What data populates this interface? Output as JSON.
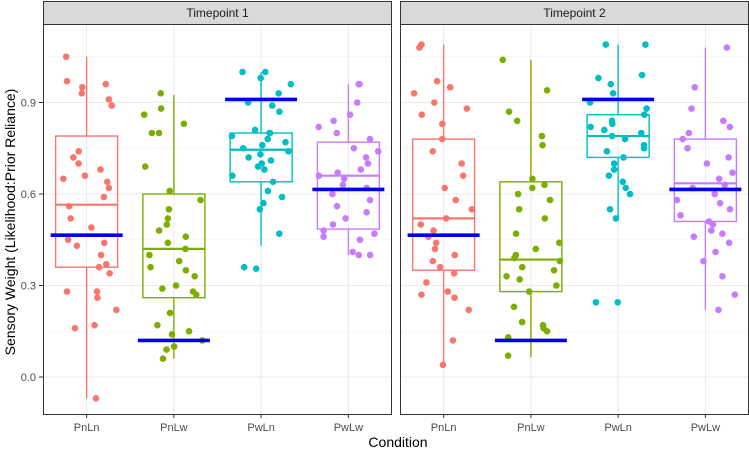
{
  "chart_data": {
    "type": "boxplot",
    "ylabel": "Sensory Weight (Likelihood:Prior Reliance)",
    "xlabel": "Condition",
    "ylim": [
      -0.1,
      1.12
    ],
    "yticks": [
      0.0,
      0.3,
      0.6,
      0.9
    ],
    "ytick_labels": [
      "0.0",
      "0.3",
      "0.6",
      "0.9"
    ],
    "categories": [
      "PnLn",
      "PnLw",
      "PwLn",
      "PwLw"
    ],
    "colors": {
      "PnLn": "#F8766D",
      "PnLw": "#7CAE00",
      "PwLn": "#00BFC4",
      "PwLw": "#C77CFF",
      "reference": "#0000EE"
    },
    "panels": [
      {
        "title": "Timepoint 1",
        "groups": [
          {
            "category": "PnLn",
            "whisker_low": -0.07,
            "q1": 0.36,
            "median": 0.565,
            "q3": 0.79,
            "whisker_high": 1.05,
            "reference": 0.465,
            "points": [
              -0.07,
              0.16,
              0.17,
              0.22,
              0.26,
              0.28,
              0.28,
              0.34,
              0.36,
              0.37,
              0.4,
              0.43,
              0.44,
              0.45,
              0.49,
              0.52,
              0.56,
              0.59,
              0.62,
              0.64,
              0.65,
              0.66,
              0.68,
              0.7,
              0.72,
              0.74,
              0.89,
              0.91,
              0.93,
              0.95,
              0.96,
              0.97,
              1.05
            ]
          },
          {
            "category": "PnLw",
            "whisker_low": 0.06,
            "q1": 0.26,
            "median": 0.42,
            "q3": 0.6,
            "whisker_high": 0.925,
            "reference": 0.12,
            "points": [
              0.06,
              0.09,
              0.1,
              0.12,
              0.14,
              0.15,
              0.17,
              0.21,
              0.27,
              0.28,
              0.29,
              0.3,
              0.33,
              0.35,
              0.36,
              0.38,
              0.4,
              0.42,
              0.44,
              0.46,
              0.48,
              0.5,
              0.52,
              0.55,
              0.58,
              0.61,
              0.69,
              0.8,
              0.8,
              0.83,
              0.86,
              0.88,
              0.93
            ]
          },
          {
            "category": "PwLn",
            "whisker_low": 0.43,
            "q1": 0.64,
            "median": 0.745,
            "q3": 0.8,
            "whisker_high": 1.0,
            "reference": 0.91,
            "points": [
              0.355,
              0.36,
              0.47,
              0.55,
              0.57,
              0.59,
              0.61,
              0.64,
              0.66,
              0.68,
              0.69,
              0.7,
              0.71,
              0.72,
              0.73,
              0.74,
              0.75,
              0.76,
              0.77,
              0.78,
              0.79,
              0.8,
              0.8,
              0.81,
              0.87,
              0.89,
              0.9,
              0.93,
              0.96,
              0.98,
              1.0,
              1.0
            ]
          },
          {
            "category": "PwLw",
            "whisker_low": 0.4,
            "q1": 0.485,
            "median": 0.66,
            "q3": 0.77,
            "whisker_high": 0.96,
            "reference": 0.615,
            "points": [
              0.4,
              0.4,
              0.41,
              0.45,
              0.46,
              0.47,
              0.48,
              0.5,
              0.52,
              0.54,
              0.56,
              0.58,
              0.6,
              0.62,
              0.63,
              0.65,
              0.66,
              0.67,
              0.68,
              0.7,
              0.72,
              0.74,
              0.75,
              0.78,
              0.8,
              0.82,
              0.84,
              0.86,
              0.9,
              0.96,
              0.96
            ]
          }
        ]
      },
      {
        "title": "Timepoint 2",
        "groups": [
          {
            "category": "PnLn",
            "whisker_low": 0.04,
            "q1": 0.35,
            "median": 0.52,
            "q3": 0.78,
            "whisker_high": 1.09,
            "reference": 0.465,
            "points": [
              0.04,
              0.12,
              0.22,
              0.26,
              0.27,
              0.28,
              0.31,
              0.34,
              0.36,
              0.38,
              0.4,
              0.42,
              0.44,
              0.46,
              0.48,
              0.5,
              0.52,
              0.55,
              0.58,
              0.62,
              0.66,
              0.7,
              0.74,
              0.78,
              0.83,
              0.86,
              0.88,
              0.9,
              0.93,
              0.95,
              0.97,
              1.08,
              1.09
            ]
          },
          {
            "category": "PnLw",
            "whisker_low": 0.065,
            "q1": 0.28,
            "median": 0.385,
            "q3": 0.64,
            "whisker_high": 1.04,
            "reference": 0.12,
            "points": [
              0.07,
              0.13,
              0.15,
              0.16,
              0.17,
              0.18,
              0.23,
              0.28,
              0.3,
              0.32,
              0.33,
              0.35,
              0.36,
              0.38,
              0.39,
              0.4,
              0.42,
              0.44,
              0.47,
              0.52,
              0.55,
              0.58,
              0.6,
              0.62,
              0.63,
              0.65,
              0.76,
              0.79,
              0.84,
              0.87,
              0.94,
              1.04
            ]
          },
          {
            "category": "PwLn",
            "whisker_low": 0.52,
            "q1": 0.72,
            "median": 0.79,
            "q3": 0.86,
            "whisker_high": 1.09,
            "reference": 0.91,
            "points": [
              0.245,
              0.245,
              0.52,
              0.55,
              0.6,
              0.62,
              0.64,
              0.66,
              0.68,
              0.7,
              0.72,
              0.74,
              0.75,
              0.76,
              0.78,
              0.79,
              0.8,
              0.81,
              0.82,
              0.83,
              0.84,
              0.86,
              0.88,
              0.9,
              0.93,
              0.96,
              0.98,
              0.99,
              1.09,
              1.09
            ]
          },
          {
            "category": "PwLw",
            "whisker_low": 0.22,
            "q1": 0.51,
            "median": 0.635,
            "q3": 0.78,
            "whisker_high": 1.08,
            "reference": 0.615,
            "points": [
              0.22,
              0.27,
              0.33,
              0.38,
              0.41,
              0.44,
              0.46,
              0.47,
              0.48,
              0.5,
              0.51,
              0.53,
              0.55,
              0.57,
              0.58,
              0.6,
              0.62,
              0.63,
              0.65,
              0.67,
              0.7,
              0.72,
              0.75,
              0.78,
              0.8,
              0.82,
              0.84,
              0.88,
              0.95,
              1.08
            ]
          }
        ]
      }
    ]
  }
}
